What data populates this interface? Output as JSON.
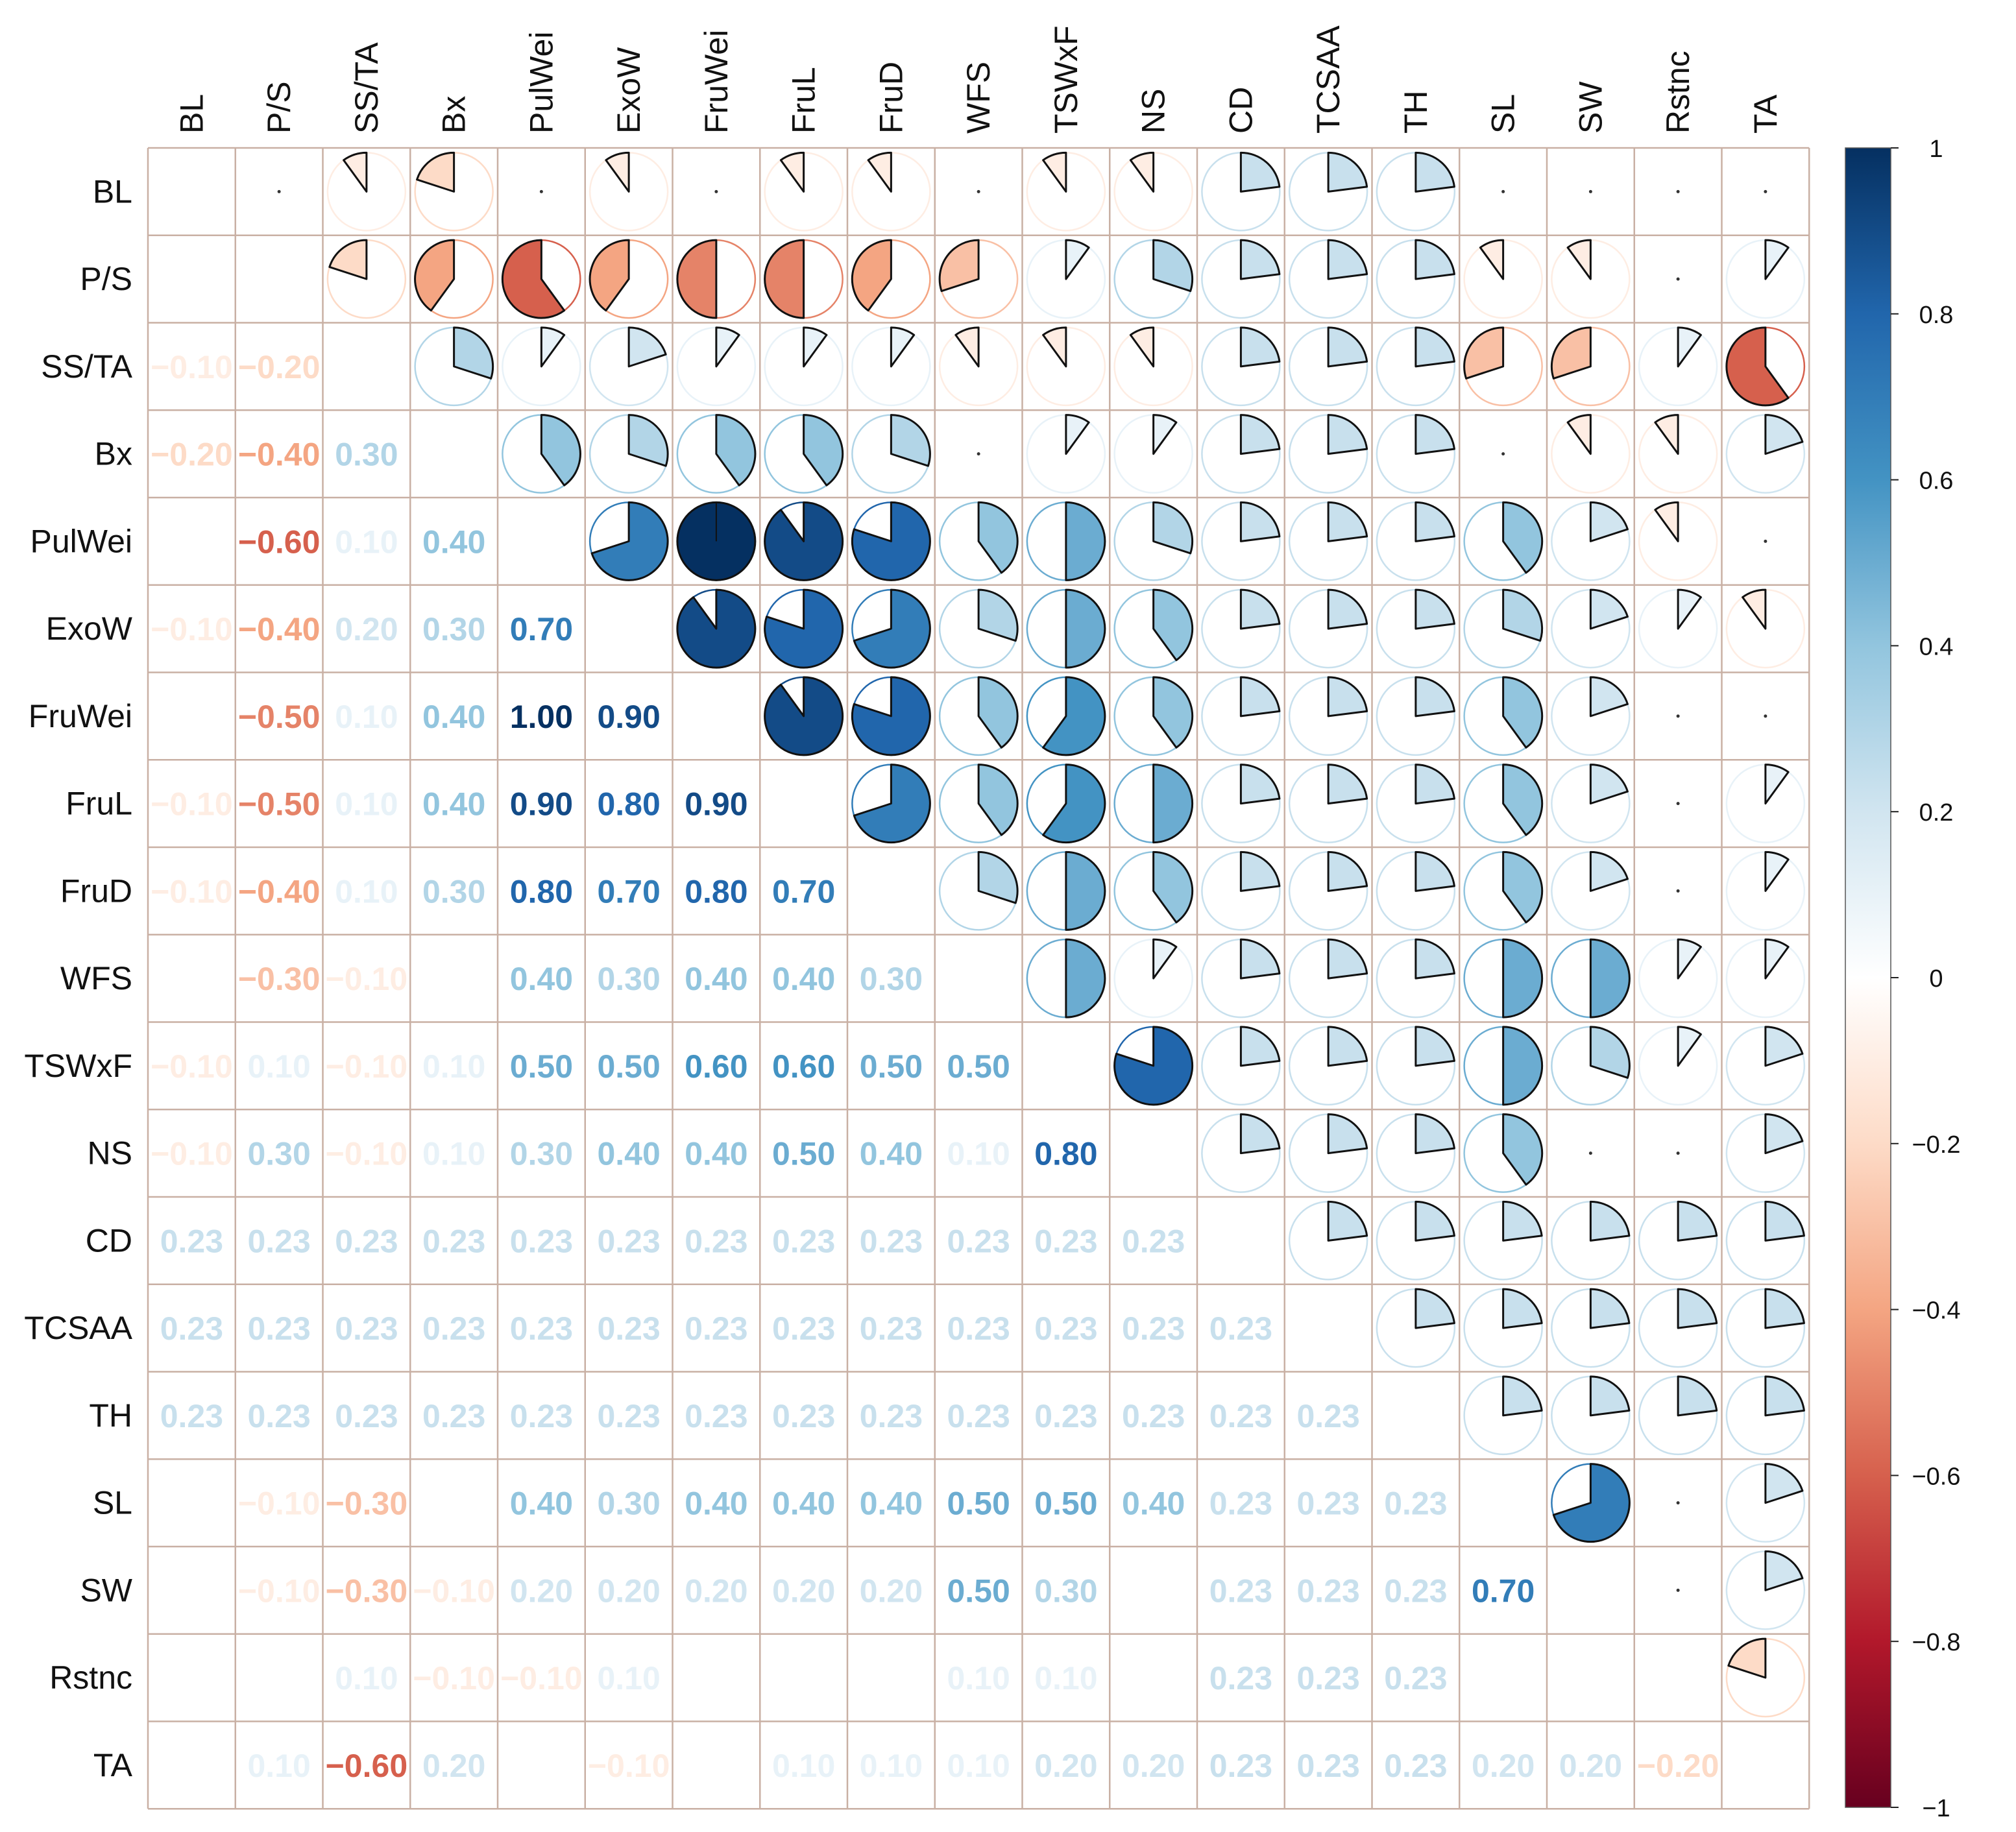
{
  "chart_data": {
    "type": "heatmap",
    "subtype": "mixed correlogram (lower: numbers, upper: pies)",
    "title": "",
    "variables": [
      "BL",
      "P/S",
      "SS/TA",
      "Bx",
      "PulWei",
      "ExoW",
      "FruWei",
      "FruL",
      "FruD",
      "WFS",
      "TSWxF",
      "NS",
      "CD",
      "TCSAA",
      "TH",
      "SL",
      "SW",
      "Rstnc",
      "TA"
    ],
    "lower_labels": [
      [
        "",
        "",
        "",
        "",
        "",
        "",
        "",
        "",
        "",
        "",
        "",
        "",
        "",
        "",
        "",
        "",
        "",
        "",
        ""
      ],
      [
        "",
        "",
        "",
        "",
        "",
        "",
        "",
        "",
        "",
        "",
        "",
        "",
        "",
        "",
        "",
        "",
        "",
        "",
        ""
      ],
      [
        "−0.10",
        "−0.20",
        "",
        "",
        "",
        "",
        "",
        "",
        "",
        "",
        "",
        "",
        "",
        "",
        "",
        "",
        "",
        "",
        ""
      ],
      [
        "−0.20",
        "−0.40",
        "0.30",
        "",
        "",
        "",
        "",
        "",
        "",
        "",
        "",
        "",
        "",
        "",
        "",
        "",
        "",
        "",
        ""
      ],
      [
        "",
        "−0.60",
        "0.10",
        "0.40",
        "",
        "",
        "",
        "",
        "",
        "",
        "",
        "",
        "",
        "",
        "",
        "",
        "",
        "",
        ""
      ],
      [
        "−0.10",
        "−0.40",
        "0.20",
        "0.30",
        "0.70",
        "",
        "",
        "",
        "",
        "",
        "",
        "",
        "",
        "",
        "",
        "",
        "",
        "",
        ""
      ],
      [
        "",
        "−0.50",
        "0.10",
        "0.40",
        "1.00",
        "0.90",
        "",
        "",
        "",
        "",
        "",
        "",
        "",
        "",
        "",
        "",
        "",
        "",
        ""
      ],
      [
        "−0.10",
        "−0.50",
        "0.10",
        "0.40",
        "0.90",
        "0.80",
        "0.90",
        "",
        "",
        "",
        "",
        "",
        "",
        "",
        "",
        "",
        "",
        "",
        ""
      ],
      [
        "−0.10",
        "−0.40",
        "0.10",
        "0.30",
        "0.80",
        "0.70",
        "0.80",
        "0.70",
        "",
        "",
        "",
        "",
        "",
        "",
        "",
        "",
        "",
        "",
        ""
      ],
      [
        "",
        "−0.30",
        "−0.10",
        "",
        "0.40",
        "0.30",
        "0.40",
        "0.40",
        "0.30",
        "",
        "",
        "",
        "",
        "",
        "",
        "",
        "",
        "",
        ""
      ],
      [
        "−0.10",
        "0.10",
        "−0.10",
        "0.10",
        "0.50",
        "0.50",
        "0.60",
        "0.60",
        "0.50",
        "0.50",
        "",
        "",
        "",
        "",
        "",
        "",
        "",
        "",
        ""
      ],
      [
        "−0.10",
        "0.30",
        "−0.10",
        "0.10",
        "0.30",
        "0.40",
        "0.40",
        "0.50",
        "0.40",
        "0.10",
        "0.80",
        "",
        "",
        "",
        "",
        "",
        "",
        "",
        ""
      ],
      [
        "0.23",
        "0.23",
        "0.23",
        "0.23",
        "0.23",
        "0.23",
        "0.23",
        "0.23",
        "0.23",
        "0.23",
        "0.23",
        "0.23",
        "",
        "",
        "",
        "",
        "",
        "",
        ""
      ],
      [
        "0.23",
        "0.23",
        "0.23",
        "0.23",
        "0.23",
        "0.23",
        "0.23",
        "0.23",
        "0.23",
        "0.23",
        "0.23",
        "0.23",
        "0.23",
        "",
        "",
        "",
        "",
        "",
        ""
      ],
      [
        "0.23",
        "0.23",
        "0.23",
        "0.23",
        "0.23",
        "0.23",
        "0.23",
        "0.23",
        "0.23",
        "0.23",
        "0.23",
        "0.23",
        "0.23",
        "0.23",
        "",
        "",
        "",
        "",
        ""
      ],
      [
        "",
        "−0.10",
        "−0.30",
        "",
        "0.40",
        "0.30",
        "0.40",
        "0.40",
        "0.40",
        "0.50",
        "0.50",
        "0.40",
        "0.23",
        "0.23",
        "0.23",
        "",
        "",
        "",
        ""
      ],
      [
        "",
        "−0.10",
        "−0.30",
        "−0.10",
        "0.20",
        "0.20",
        "0.20",
        "0.20",
        "0.20",
        "0.50",
        "0.30",
        "",
        "0.23",
        "0.23",
        "0.23",
        "0.70",
        "",
        "",
        ""
      ],
      [
        "",
        "",
        "0.10",
        "−0.10",
        "−0.10",
        "0.10",
        "",
        "",
        "",
        "0.10",
        "0.10",
        "",
        "0.23",
        "0.23",
        "0.23",
        "",
        "",
        "",
        ""
      ],
      [
        "",
        "0.10",
        "−0.60",
        "0.20",
        "",
        "−0.10",
        "",
        "0.10",
        "0.10",
        "0.10",
        "0.20",
        "0.20",
        "0.23",
        "0.23",
        "0.23",
        "0.20",
        "0.20",
        "−0.20",
        ""
      ]
    ],
    "upper_values": [
      [
        null,
        0,
        -0.1,
        -0.2,
        0,
        -0.1,
        0,
        -0.1,
        -0.1,
        0,
        -0.1,
        -0.1,
        0.23,
        0.23,
        0.23,
        0,
        0,
        0,
        0
      ],
      [
        null,
        null,
        -0.2,
        -0.4,
        -0.6,
        -0.4,
        -0.5,
        -0.5,
        -0.4,
        -0.3,
        0.1,
        0.3,
        0.23,
        0.23,
        0.23,
        -0.1,
        -0.1,
        0,
        0.1
      ],
      [
        null,
        null,
        null,
        0.3,
        0.1,
        0.2,
        0.1,
        0.1,
        0.1,
        -0.1,
        -0.1,
        -0.1,
        0.23,
        0.23,
        0.23,
        -0.3,
        -0.3,
        0.1,
        -0.6
      ],
      [
        null,
        null,
        null,
        null,
        0.4,
        0.3,
        0.4,
        0.4,
        0.3,
        0,
        0.1,
        0.1,
        0.23,
        0.23,
        0.23,
        0,
        -0.1,
        -0.1,
        0.2
      ],
      [
        null,
        null,
        null,
        null,
        null,
        0.7,
        1.0,
        0.9,
        0.8,
        0.4,
        0.5,
        0.3,
        0.23,
        0.23,
        0.23,
        0.4,
        0.2,
        -0.1,
        0
      ],
      [
        null,
        null,
        null,
        null,
        null,
        null,
        0.9,
        0.8,
        0.7,
        0.3,
        0.5,
        0.4,
        0.23,
        0.23,
        0.23,
        0.3,
        0.2,
        0.1,
        -0.1
      ],
      [
        null,
        null,
        null,
        null,
        null,
        null,
        null,
        0.9,
        0.8,
        0.4,
        0.6,
        0.4,
        0.23,
        0.23,
        0.23,
        0.4,
        0.2,
        0,
        0
      ],
      [
        null,
        null,
        null,
        null,
        null,
        null,
        null,
        null,
        0.7,
        0.4,
        0.6,
        0.5,
        0.23,
        0.23,
        0.23,
        0.4,
        0.2,
        0,
        0.1
      ],
      [
        null,
        null,
        null,
        null,
        null,
        null,
        null,
        null,
        null,
        0.3,
        0.5,
        0.4,
        0.23,
        0.23,
        0.23,
        0.4,
        0.2,
        0,
        0.1
      ],
      [
        null,
        null,
        null,
        null,
        null,
        null,
        null,
        null,
        null,
        null,
        0.5,
        0.1,
        0.23,
        0.23,
        0.23,
        0.5,
        0.5,
        0.1,
        0.1
      ],
      [
        null,
        null,
        null,
        null,
        null,
        null,
        null,
        null,
        null,
        null,
        null,
        0.8,
        0.23,
        0.23,
        0.23,
        0.5,
        0.3,
        0.1,
        0.2
      ],
      [
        null,
        null,
        null,
        null,
        null,
        null,
        null,
        null,
        null,
        null,
        null,
        null,
        0.23,
        0.23,
        0.23,
        0.4,
        0,
        0,
        0.2
      ],
      [
        null,
        null,
        null,
        null,
        null,
        null,
        null,
        null,
        null,
        null,
        null,
        null,
        null,
        0.23,
        0.23,
        0.23,
        0.23,
        0.23,
        0.23
      ],
      [
        null,
        null,
        null,
        null,
        null,
        null,
        null,
        null,
        null,
        null,
        null,
        null,
        null,
        null,
        0.23,
        0.23,
        0.23,
        0.23,
        0.23
      ],
      [
        null,
        null,
        null,
        null,
        null,
        null,
        null,
        null,
        null,
        null,
        null,
        null,
        null,
        null,
        null,
        0.23,
        0.23,
        0.23,
        0.23
      ],
      [
        null,
        null,
        null,
        null,
        null,
        null,
        null,
        null,
        null,
        null,
        null,
        null,
        null,
        null,
        null,
        null,
        0.7,
        0,
        0.2
      ],
      [
        null,
        null,
        null,
        null,
        null,
        null,
        null,
        null,
        null,
        null,
        null,
        null,
        null,
        null,
        null,
        null,
        null,
        0,
        0.2
      ],
      [
        null,
        null,
        null,
        null,
        null,
        null,
        null,
        null,
        null,
        null,
        null,
        null,
        null,
        null,
        null,
        null,
        null,
        null,
        -0.2
      ],
      [
        null,
        null,
        null,
        null,
        null,
        null,
        null,
        null,
        null,
        null,
        null,
        null,
        null,
        null,
        null,
        null,
        null,
        null,
        null
      ]
    ],
    "colorbar": {
      "range": [
        -1,
        1
      ],
      "ticks": [
        {
          "value": 1,
          "label": "1"
        },
        {
          "value": 0.8,
          "label": "0.8"
        },
        {
          "value": 0.6,
          "label": "0.6"
        },
        {
          "value": 0.4,
          "label": "0.4"
        },
        {
          "value": 0.2,
          "label": "0.2"
        },
        {
          "value": 0,
          "label": "0"
        },
        {
          "value": -0.2,
          "label": "−0.2"
        },
        {
          "value": -0.4,
          "label": "−0.4"
        },
        {
          "value": -0.6,
          "label": "−0.6"
        },
        {
          "value": -0.8,
          "label": "−0.8"
        },
        {
          "value": -1,
          "label": "−1"
        }
      ],
      "colors": [
        "#67001F",
        "#B2182B",
        "#D6604D",
        "#F4A582",
        "#FDDBC7",
        "#FFFFFF",
        "#D1E5F0",
        "#92C5DE",
        "#4393C3",
        "#2166AC",
        "#053061"
      ]
    },
    "grid_color": "#C9B0A4",
    "pie_outline_color": "#111111"
  }
}
